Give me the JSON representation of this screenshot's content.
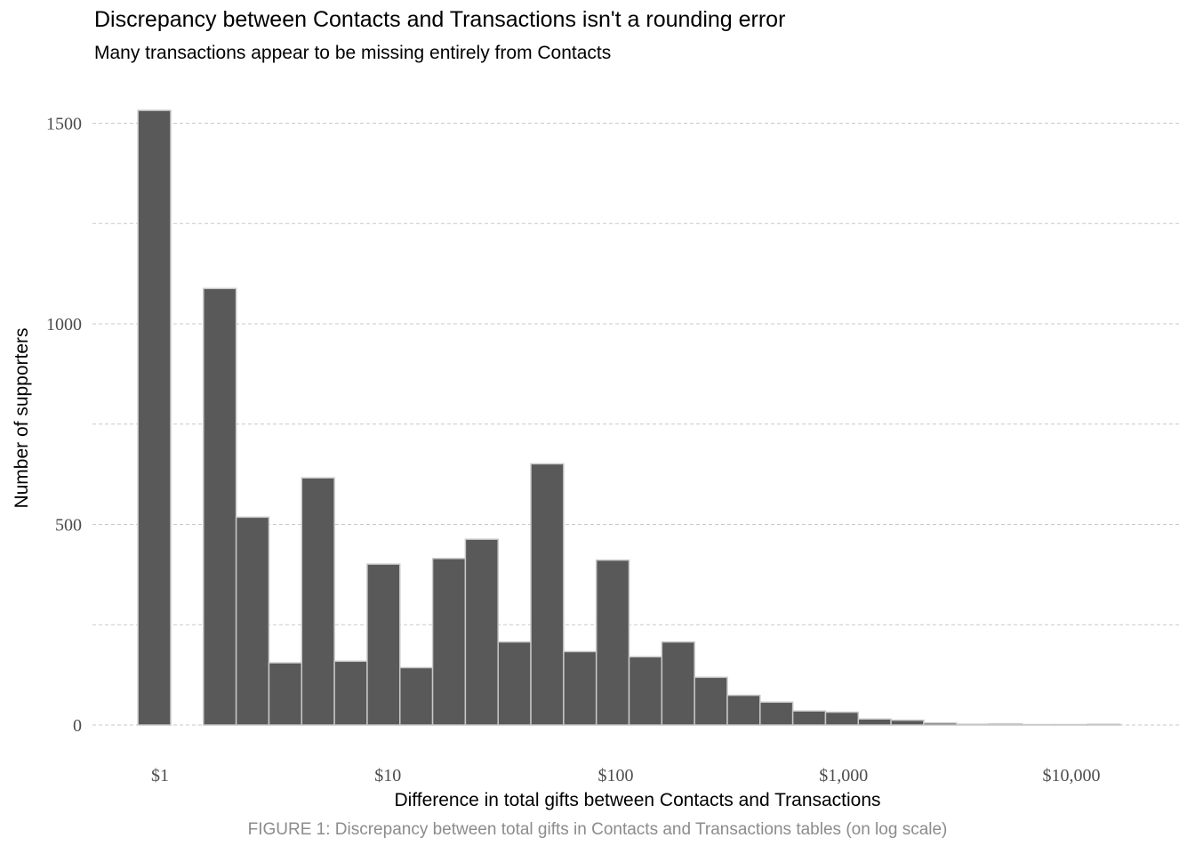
{
  "chart_data": {
    "type": "bar",
    "title": "Discrepancy between Contacts and Transactions isn't a rounding error",
    "subtitle": "Many transactions appear to be missing entirely from Contacts",
    "xlabel": "Difference in total gifts between Contacts and Transactions",
    "ylabel": "Number of supporters",
    "caption": "FIGURE 1: Discrepancy between total gifts in Contacts and Transactions tables (on log scale)",
    "x_scale": "log10",
    "x_bin_width_log10": 0.1437,
    "x_first_bin_start": 0.8,
    "x_ticks": [
      1,
      10,
      100,
      1000,
      10000
    ],
    "x_tick_labels": [
      "$1",
      "$10",
      "$100",
      "$1,000",
      "$10,000"
    ],
    "y_ticks": [
      0,
      500,
      1000,
      1500
    ],
    "y_tick_labels": [
      "0",
      "500",
      "1000",
      "1500"
    ],
    "ylim": [
      0,
      1560
    ],
    "values": [
      1532,
      0,
      1088,
      518,
      155,
      616,
      159,
      401,
      143,
      415,
      463,
      207,
      651,
      183,
      411,
      170,
      207,
      119,
      74,
      57,
      35,
      32,
      15,
      12,
      5,
      2,
      3,
      1,
      1,
      2
    ],
    "grid": "horizontal dashed",
    "colors": {
      "bar_fill": "#595959",
      "bar_stroke": "#c8c8c8",
      "grid": "#c9c9c9"
    }
  }
}
